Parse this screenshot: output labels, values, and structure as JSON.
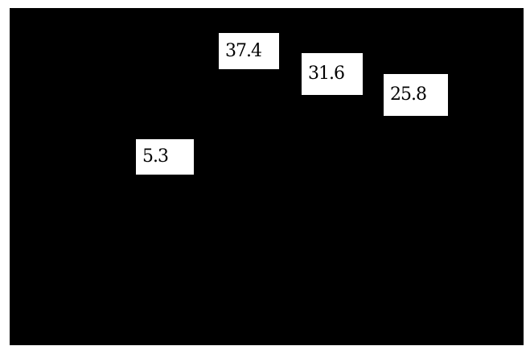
{
  "chart_data": {
    "type": "scatter",
    "points": [
      {
        "label": "5.3",
        "value": 5.3
      },
      {
        "label": "37.4",
        "value": 37.4
      },
      {
        "label": "31.6",
        "value": 31.6
      },
      {
        "label": "25.8",
        "value": 25.8
      }
    ],
    "title": "",
    "xlabel": "",
    "ylabel": "",
    "grid": false,
    "colors": {
      "background": "#000000",
      "label_bg": "#ffffff",
      "text": "#000000"
    }
  }
}
